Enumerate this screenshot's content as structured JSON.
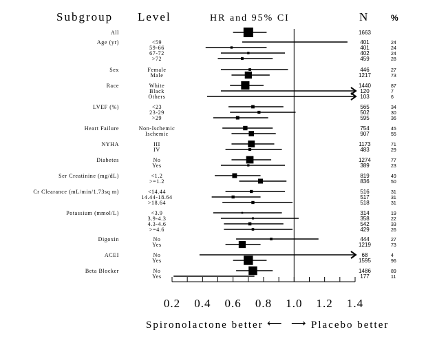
{
  "chart_data": {
    "type": "forest",
    "headers": {
      "subgroup": "Subgroup",
      "level": "Level",
      "ci": "HR and 95% CI",
      "n": "N",
      "pct": "%"
    },
    "xlim": [
      0.2,
      1.4
    ],
    "reference_line": 1.0,
    "xticks": [
      "0.2",
      "0.4",
      "0.6",
      "0.8",
      "1.0",
      "1.2",
      "1.4"
    ],
    "xlabel_left": "Spironolactone better",
    "xlabel_right": "Placebo better",
    "arrow_left": "⟵",
    "arrow_right": "⟶",
    "rows": [
      {
        "group": "All",
        "level": "",
        "n": "1663",
        "pct": "",
        "hr": 0.7,
        "lo": 0.6,
        "hi": 0.82
      },
      {
        "group": "Age (yr)",
        "level": "<59",
        "n": "401",
        "pct": "24",
        "hr": null,
        "lo": 0.66,
        "hi": 1.35
      },
      {
        "group": "",
        "level": "59-66",
        "n": "401",
        "pct": "24",
        "hr": 0.59,
        "lo": 0.42,
        "hi": 0.82
      },
      {
        "group": "",
        "level": "67-72",
        "n": "402",
        "pct": "24",
        "hr": 0.7,
        "lo": 0.52,
        "hi": 0.94
      },
      {
        "group": "",
        "level": ">72",
        "n": "459",
        "pct": "28",
        "hr": 0.66,
        "lo": 0.5,
        "hi": 0.86
      },
      {
        "group": "Sex",
        "level": "Female",
        "n": "446",
        "pct": "27",
        "hr": 0.71,
        "lo": 0.52,
        "hi": 0.96
      },
      {
        "group": "",
        "level": "Male",
        "n": "1217",
        "pct": "73",
        "hr": 0.7,
        "lo": 0.59,
        "hi": 0.84
      },
      {
        "group": "Race",
        "level": "White",
        "n": "1440",
        "pct": "87",
        "hr": 0.68,
        "lo": 0.58,
        "hi": 0.8
      },
      {
        "group": "",
        "level": "Black",
        "n": "120",
        "pct": "7",
        "hr": null,
        "lo": 0.52,
        "hi": 1.4,
        "arrow": true
      },
      {
        "group": "",
        "level": "Others",
        "n": "103",
        "pct": "6",
        "hr": null,
        "lo": 0.43,
        "hi": 1.4,
        "arrow": true
      },
      {
        "group": "LVEF (%)",
        "level": "<23",
        "n": "565",
        "pct": "34",
        "hr": 0.73,
        "lo": 0.57,
        "hi": 0.93
      },
      {
        "group": "",
        "level": "23-29",
        "n": "502",
        "pct": "30",
        "hr": 0.77,
        "lo": 0.58,
        "hi": 1.01
      },
      {
        "group": "",
        "level": ">29",
        "n": "595",
        "pct": "36",
        "hr": 0.63,
        "lo": 0.47,
        "hi": 0.83
      },
      {
        "group": "Heart Failure",
        "level": "Non-Ischemic",
        "n": "754",
        "pct": "45",
        "hr": 0.68,
        "lo": 0.53,
        "hi": 0.86
      },
      {
        "group": "",
        "level": "Ischemic",
        "n": "907",
        "pct": "55",
        "hr": 0.72,
        "lo": 0.59,
        "hi": 0.88
      },
      {
        "group": "NYHA",
        "level": "III",
        "n": "1173",
        "pct": "71",
        "hr": 0.72,
        "lo": 0.59,
        "hi": 0.87
      },
      {
        "group": "",
        "level": "IV",
        "n": "483",
        "pct": "29",
        "hr": 0.71,
        "lo": 0.55,
        "hi": 0.92
      },
      {
        "group": "Diabetes",
        "level": "No",
        "n": "1274",
        "pct": "77",
        "hr": 0.71,
        "lo": 0.59,
        "hi": 0.85
      },
      {
        "group": "",
        "level": "Yes",
        "n": "389",
        "pct": "23",
        "hr": 0.7,
        "lo": 0.52,
        "hi": 0.94
      },
      {
        "group": "Ser Creatinine (mg/dL)",
        "level": "<1.2",
        "n": "819",
        "pct": "49",
        "hr": 0.61,
        "lo": 0.48,
        "hi": 0.78
      },
      {
        "group": "",
        "level": ">=1.2",
        "n": "836",
        "pct": "50",
        "hr": 0.78,
        "lo": 0.64,
        "hi": 0.95
      },
      {
        "group": "Cr Clearance (mL/min/1.73sq m)",
        "level": "<14.44",
        "n": "516",
        "pct": "31",
        "hr": 0.72,
        "lo": 0.55,
        "hi": 0.94
      },
      {
        "group": "",
        "level": "14.44-18.64",
        "n": "517",
        "pct": "31",
        "hr": 0.6,
        "lo": 0.46,
        "hi": 0.78
      },
      {
        "group": "",
        "level": ">18.64",
        "n": "518",
        "pct": "31",
        "hr": 0.73,
        "lo": 0.53,
        "hi": 0.99
      },
      {
        "group": "Potassium (mmol/L)",
        "level": "<3.9",
        "n": "314",
        "pct": "19",
        "hr": 0.66,
        "lo": 0.47,
        "hi": 0.92
      },
      {
        "group": "",
        "level": "3.9-4.3",
        "n": "358",
        "pct": "22",
        "hr": 0.73,
        "lo": 0.52,
        "hi": 1.03
      },
      {
        "group": "",
        "level": "4.3-4.6",
        "n": "542",
        "pct": "33",
        "hr": 0.71,
        "lo": 0.54,
        "hi": 0.93
      },
      {
        "group": "",
        "level": ">=4.6",
        "n": "429",
        "pct": "26",
        "hr": 0.73,
        "lo": 0.54,
        "hi": 0.99
      },
      {
        "group": "Digoxin",
        "level": "No",
        "n": "444",
        "pct": "27",
        "hr": 0.85,
        "lo": 0.62,
        "hi": 1.16
      },
      {
        "group": "",
        "level": "Yes",
        "n": "1219",
        "pct": "73",
        "hr": 0.66,
        "lo": 0.55,
        "hi": 0.78
      },
      {
        "group": "ACEI",
        "level": "No",
        "n": "68",
        "pct": "4",
        "hr": null,
        "lo": 0.38,
        "hi": 1.4,
        "arrow": true
      },
      {
        "group": "",
        "level": "Yes",
        "n": "1595",
        "pct": "96",
        "hr": 0.7,
        "lo": 0.6,
        "hi": 0.82
      },
      {
        "group": "Beta Blocker",
        "level": "No",
        "n": "1486",
        "pct": "89",
        "hr": 0.73,
        "lo": 0.62,
        "hi": 0.86
      },
      {
        "group": "",
        "level": "Yes",
        "n": "177",
        "pct": "11",
        "hr": null,
        "lo": 0.21,
        "hi": 0.74
      }
    ]
  }
}
